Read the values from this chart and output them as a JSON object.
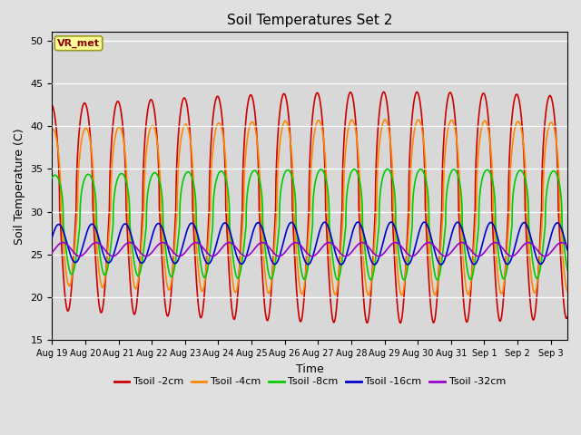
{
  "title": "Soil Temperatures Set 2",
  "xlabel": "Time",
  "ylabel": "Soil Temperature (C)",
  "ylim": [
    15,
    51
  ],
  "yticks": [
    15,
    20,
    25,
    30,
    35,
    40,
    45,
    50
  ],
  "num_days": 15.5,
  "x_tick_labels": [
    "Aug 19",
    "Aug 20",
    "Aug 21",
    "Aug 22",
    "Aug 23",
    "Aug 24",
    "Aug 25",
    "Aug 26",
    "Aug 27",
    "Aug 28",
    "Aug 29",
    "Aug 30",
    "Aug 31",
    "Sep 1",
    "Sep 2",
    "Sep 3"
  ],
  "colors": {
    "Tsoil -2cm": "#cc0000",
    "Tsoil -4cm": "#ff8800",
    "Tsoil -8cm": "#00cc00",
    "Tsoil -16cm": "#0000cc",
    "Tsoil -32cm": "#9900cc"
  },
  "bg_color": "#e0e0e0",
  "plot_bg_color": "#d8d8d8",
  "annotation_text": "VR_met",
  "annotation_bg": "#ffff99",
  "annotation_border": "#999922"
}
